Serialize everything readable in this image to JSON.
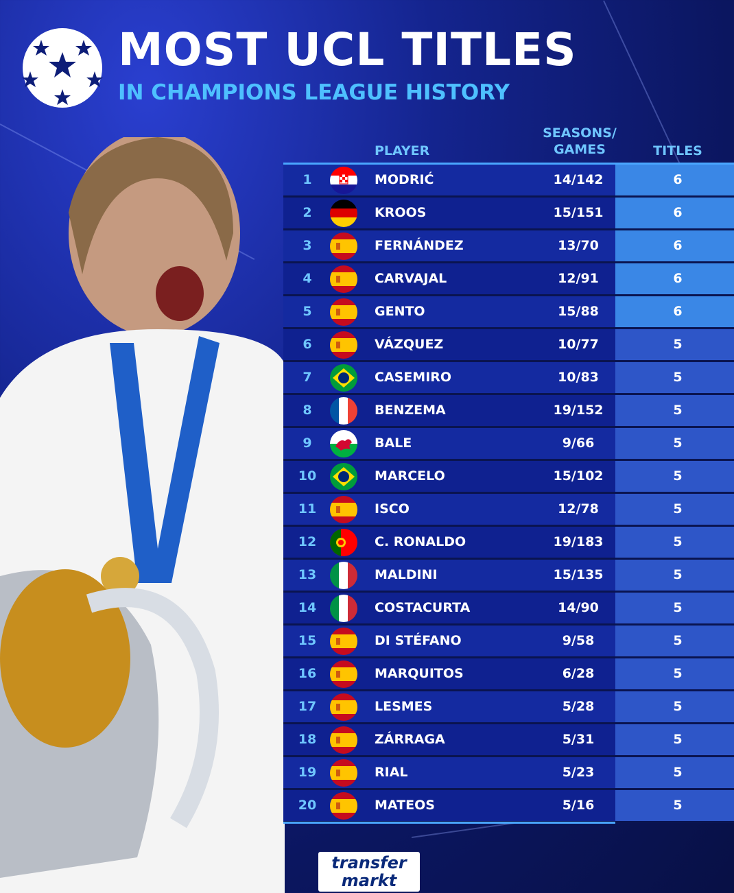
{
  "header": {
    "title": "MOST UCL TITLES",
    "subtitle": "IN CHAMPIONS LEAGUE HISTORY"
  },
  "columns": {
    "player": "PLAYER",
    "seasons_line1": "SEASONS/",
    "seasons_line2": "GAMES",
    "titles": "TITLES"
  },
  "rows": [
    {
      "rank": "1",
      "flag": "croatia",
      "name": "MODRIĆ",
      "games": "14/142",
      "titles": "6"
    },
    {
      "rank": "2",
      "flag": "germany",
      "name": "KROOS",
      "games": "15/151",
      "titles": "6"
    },
    {
      "rank": "3",
      "flag": "spain",
      "name": "FERNÁNDEZ",
      "games": "13/70",
      "titles": "6"
    },
    {
      "rank": "4",
      "flag": "spain",
      "name": "CARVAJAL",
      "games": "12/91",
      "titles": "6"
    },
    {
      "rank": "5",
      "flag": "spain",
      "name": "GENTO",
      "games": "15/88",
      "titles": "6"
    },
    {
      "rank": "6",
      "flag": "spain",
      "name": "VÁZQUEZ",
      "games": "10/77",
      "titles": "5"
    },
    {
      "rank": "7",
      "flag": "brazil",
      "name": "CASEMIRO",
      "games": "10/83",
      "titles": "5"
    },
    {
      "rank": "8",
      "flag": "france",
      "name": "BENZEMA",
      "games": "19/152",
      "titles": "5"
    },
    {
      "rank": "9",
      "flag": "wales",
      "name": "BALE",
      "games": "9/66",
      "titles": "5"
    },
    {
      "rank": "10",
      "flag": "brazil",
      "name": "MARCELO",
      "games": "15/102",
      "titles": "5"
    },
    {
      "rank": "11",
      "flag": "spain",
      "name": "ISCO",
      "games": "12/78",
      "titles": "5"
    },
    {
      "rank": "12",
      "flag": "portugal",
      "name": "C. RONALDO",
      "games": "19/183",
      "titles": "5"
    },
    {
      "rank": "13",
      "flag": "italy",
      "name": "MALDINI",
      "games": "15/135",
      "titles": "5"
    },
    {
      "rank": "14",
      "flag": "italy",
      "name": "COSTACURTA",
      "games": "14/90",
      "titles": "5"
    },
    {
      "rank": "15",
      "flag": "spain",
      "name": "DI STÉFANO",
      "games": "9/58",
      "titles": "5"
    },
    {
      "rank": "16",
      "flag": "spain",
      "name": "MARQUITOS",
      "games": "6/28",
      "titles": "5"
    },
    {
      "rank": "17",
      "flag": "spain",
      "name": "LESMES",
      "games": "5/28",
      "titles": "5"
    },
    {
      "rank": "18",
      "flag": "spain",
      "name": "ZÁRRAGA",
      "games": "5/31",
      "titles": "5"
    },
    {
      "rank": "19",
      "flag": "spain",
      "name": "RIAL",
      "games": "5/23",
      "titles": "5"
    },
    {
      "rank": "20",
      "flag": "spain",
      "name": "MATEOS",
      "games": "5/16",
      "titles": "5"
    }
  ],
  "brand": {
    "line1": "transfer",
    "line2": "markt"
  },
  "colors": {
    "accent": "#4ec0ff",
    "title_cell_top": "#3a87e6",
    "title_cell": "#2e56c8",
    "row": "#142aa0"
  },
  "icons": {
    "logo": "ucl-starball-icon",
    "photo": "player-with-trophy-image"
  }
}
